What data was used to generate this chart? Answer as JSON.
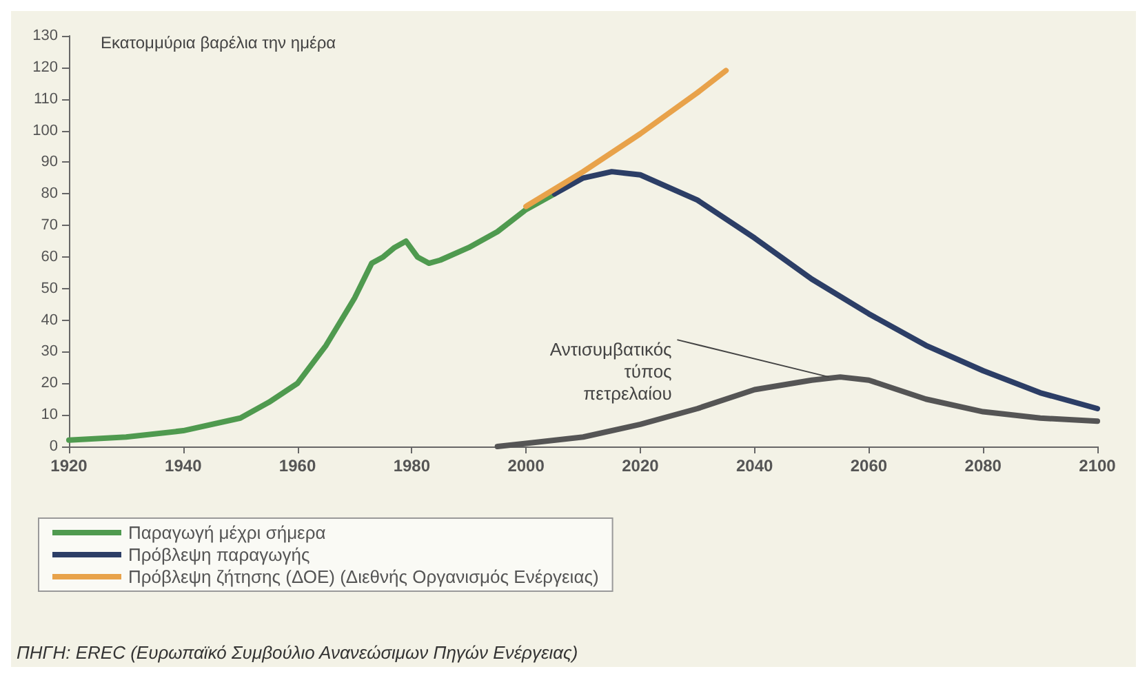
{
  "chart_data": {
    "type": "line",
    "title": "Εκατομμύρια βαρέλια την ημέρα",
    "xlim": [
      1920,
      2100
    ],
    "xticks": [
      1920,
      1940,
      1960,
      1980,
      2000,
      2020,
      2040,
      2060,
      2080,
      2100
    ],
    "ylim": [
      0,
      130
    ],
    "yticks": [
      0,
      10,
      20,
      30,
      40,
      50,
      60,
      70,
      80,
      90,
      100,
      110,
      120,
      130
    ],
    "grid": false,
    "legend": "bottom",
    "marker": "none",
    "line_style": "solid",
    "series": [
      {
        "name": "Παραγωγή μέχρι σήμερα",
        "color": "#4f9a4f",
        "x": [
          1920,
          1930,
          1940,
          1950,
          1955,
          1960,
          1965,
          1970,
          1973,
          1975,
          1977,
          1979,
          1981,
          1983,
          1985,
          1990,
          1995,
          2000,
          2005
        ],
        "values": [
          2,
          3,
          5,
          9,
          14,
          20,
          32,
          47,
          58,
          60,
          63,
          65,
          60,
          58,
          59,
          63,
          68,
          75,
          80
        ]
      },
      {
        "name": "Πρόβλεψη παραγωγής",
        "color": "#2c3e66",
        "x": [
          2005,
          2010,
          2015,
          2020,
          2030,
          2040,
          2050,
          2060,
          2070,
          2080,
          2090,
          2100
        ],
        "values": [
          80,
          85,
          87,
          86,
          78,
          66,
          53,
          42,
          32,
          24,
          17,
          12
        ]
      },
      {
        "name": "Πρόβλεψη ζήτησης (ΔΟΕ) (Διεθνής Οργανισμός Ενέργειας)",
        "color": "#e8a24a",
        "x": [
          2000,
          2010,
          2020,
          2030,
          2035
        ],
        "values": [
          76,
          87,
          99,
          112,
          119
        ]
      },
      {
        "color": "#555555",
        "x": [
          1995,
          2000,
          2010,
          2020,
          2030,
          2040,
          2050,
          2055,
          2060,
          2070,
          2080,
          2090,
          2100
        ],
        "values": [
          0,
          1,
          3,
          7,
          12,
          18,
          21,
          22,
          21,
          15,
          11,
          9,
          8
        ]
      }
    ],
    "annotations": [
      {
        "text": "Αντισυμβατικός\nτύπος\nπετρελαίου",
        "x": 2053,
        "y": 22
      },
      "ΠΗΓΗ: EREC (Ευρωπαϊκό Συμβούλιο Ανανεώσιμων Πηγών Ενέργειας)"
    ]
  }
}
